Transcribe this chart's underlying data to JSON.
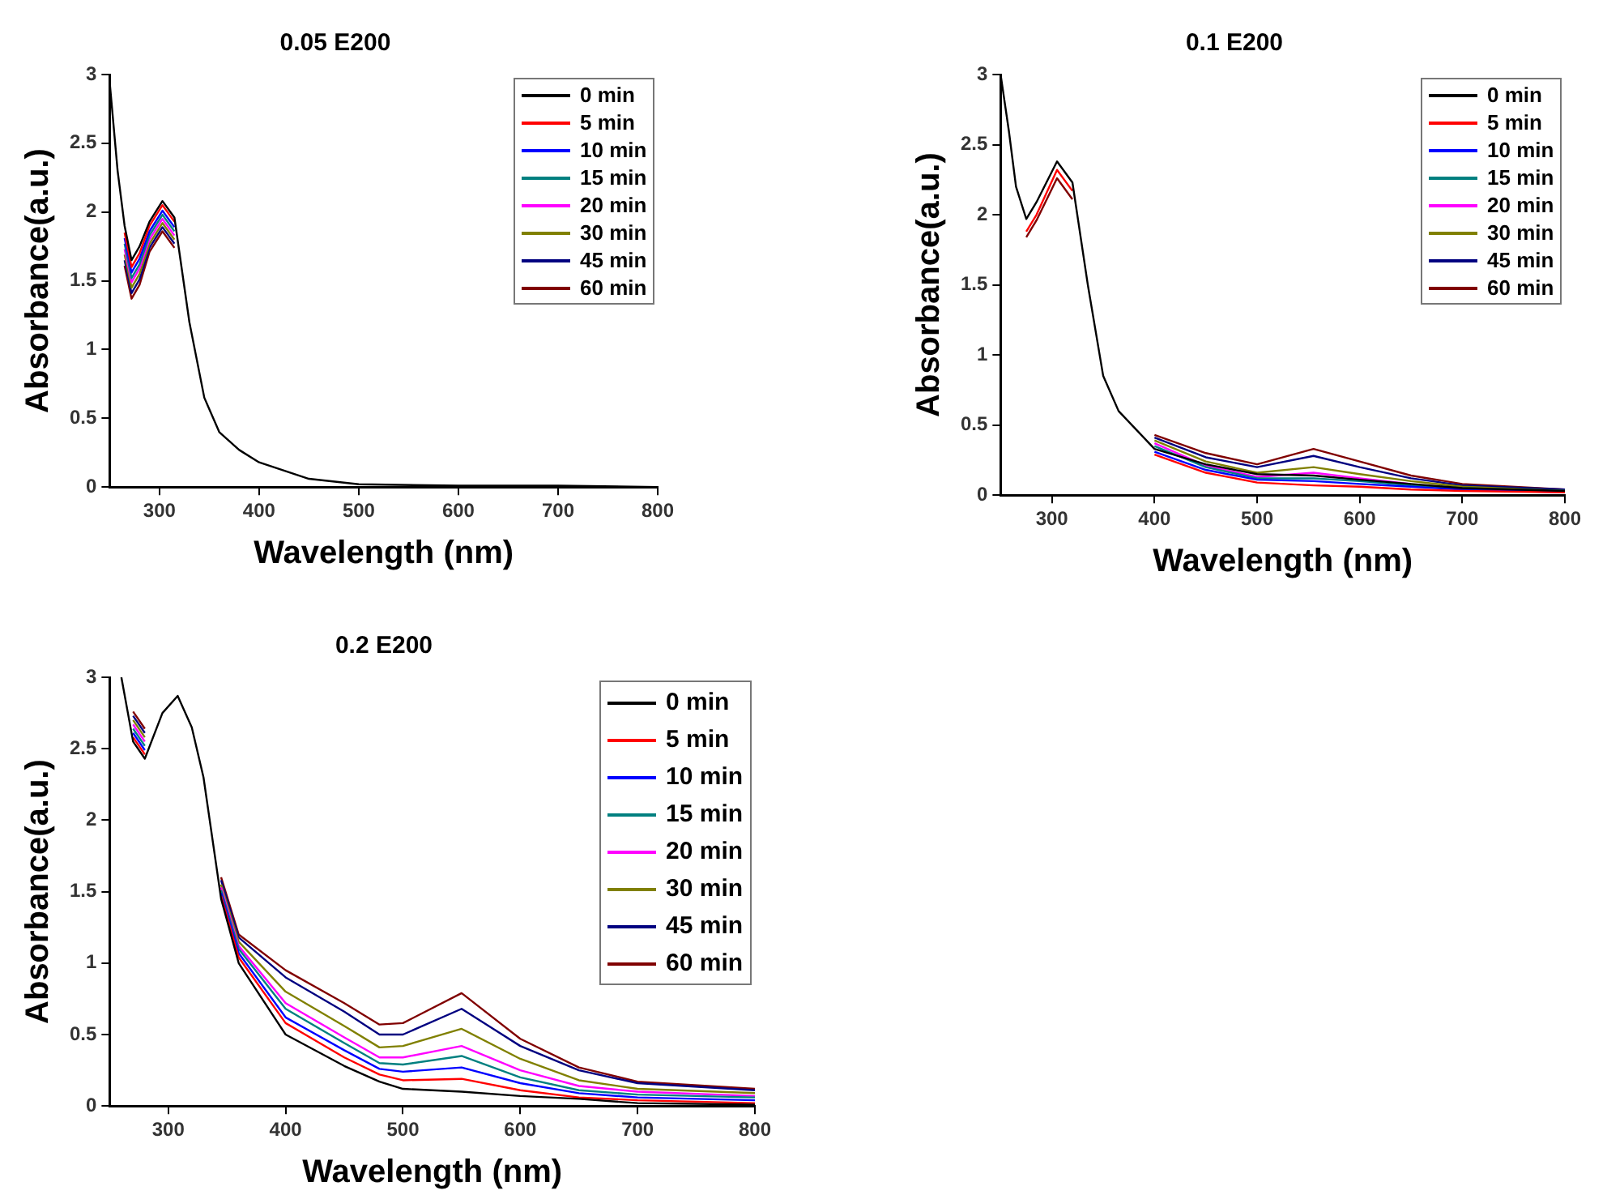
{
  "chart_data": [
    {
      "type": "line",
      "title": "0.05 E200",
      "xlabel": "Wavelength (nm)",
      "ylabel": "Absorbance(a.u.)",
      "xlim": [
        250,
        800
      ],
      "xticks": [
        300,
        400,
        500,
        600,
        700,
        800
      ],
      "ylim": [
        0,
        3
      ],
      "yticks": [
        0.0,
        0.5,
        1.0,
        1.5,
        2.0,
        2.5,
        3.0
      ],
      "grid": false,
      "legend": "top right",
      "marker": "none",
      "line_style": "solid",
      "x": [
        250,
        258,
        265,
        272,
        280,
        290,
        303,
        315,
        330,
        345,
        360,
        380,
        400,
        450,
        500,
        600,
        700,
        800
      ],
      "series": [
        {
          "name": "0 min",
          "color": "#000000",
          "values": [
            2.95,
            2.3,
            1.9,
            1.65,
            1.75,
            1.93,
            2.08,
            1.96,
            1.2,
            0.65,
            0.4,
            0.27,
            0.18,
            0.06,
            0.02,
            0.01,
            0.01,
            0
          ]
        },
        {
          "name": "5 min",
          "color": "#ff0000",
          "values": [
            null,
            null,
            1.85,
            1.6,
            1.7,
            1.9,
            2.05,
            1.93,
            null,
            null,
            null,
            null,
            null,
            null,
            null,
            null,
            null,
            null
          ]
        },
        {
          "name": "10 min",
          "color": "#0000ff",
          "values": [
            null,
            null,
            1.81,
            1.56,
            1.66,
            1.86,
            2.01,
            1.89,
            null,
            null,
            null,
            null,
            null,
            null,
            null,
            null,
            null,
            null
          ]
        },
        {
          "name": "15 min",
          "color": "#008080",
          "values": [
            null,
            null,
            1.77,
            1.52,
            1.62,
            1.83,
            1.98,
            1.86,
            null,
            null,
            null,
            null,
            null,
            null,
            null,
            null,
            null,
            null
          ]
        },
        {
          "name": "20 min",
          "color": "#ff00ff",
          "values": [
            null,
            null,
            1.73,
            1.49,
            1.59,
            1.8,
            1.95,
            1.83,
            null,
            null,
            null,
            null,
            null,
            null,
            null,
            null,
            null,
            null
          ]
        },
        {
          "name": "30 min",
          "color": "#808000",
          "values": [
            null,
            null,
            1.69,
            1.45,
            1.55,
            1.77,
            1.92,
            1.8,
            null,
            null,
            null,
            null,
            null,
            null,
            null,
            null,
            null,
            null
          ]
        },
        {
          "name": "45 min",
          "color": "#000080",
          "values": [
            null,
            null,
            1.65,
            1.41,
            1.51,
            1.74,
            1.89,
            1.77,
            null,
            null,
            null,
            null,
            null,
            null,
            null,
            null,
            null,
            null
          ]
        },
        {
          "name": "60 min",
          "color": "#800000",
          "values": [
            null,
            null,
            1.61,
            1.37,
            1.47,
            1.71,
            1.86,
            1.74,
            null,
            null,
            null,
            null,
            null,
            null,
            null,
            null,
            null,
            null
          ]
        }
      ]
    },
    {
      "type": "line",
      "title": "0.1 E200",
      "xlabel": "Wavelength (nm)",
      "ylabel": "Absorbance(a.u.)",
      "xlim": [
        250,
        800
      ],
      "xticks": [
        300,
        400,
        500,
        600,
        700,
        800
      ],
      "ylim": [
        0,
        3
      ],
      "yticks": [
        0.0,
        0.5,
        1.0,
        1.5,
        2.0,
        2.5,
        3.0
      ],
      "grid": false,
      "legend": "top right",
      "marker": "none",
      "line_style": "solid",
      "x": [
        250,
        258,
        265,
        275,
        285,
        305,
        320,
        335,
        350,
        365,
        400,
        450,
        500,
        555,
        600,
        650,
        700,
        800
      ],
      "series": [
        {
          "name": "0 min",
          "color": "#000000",
          "values": [
            3.0,
            2.6,
            2.2,
            1.97,
            2.09,
            2.38,
            2.23,
            1.5,
            0.85,
            0.6,
            0.33,
            0.22,
            0.15,
            0.14,
            0.11,
            0.08,
            0.05,
            0.03
          ]
        },
        {
          "name": "5 min",
          "color": "#ff0000",
          "values": [
            null,
            null,
            null,
            1.88,
            2.0,
            2.32,
            2.17,
            null,
            null,
            null,
            0.29,
            0.16,
            0.09,
            0.07,
            0.06,
            0.04,
            0.03,
            0.02
          ]
        },
        {
          "name": "10 min",
          "color": "#0000ff",
          "values": [
            null,
            null,
            null,
            null,
            null,
            null,
            null,
            null,
            null,
            null,
            0.31,
            0.18,
            0.11,
            0.1,
            0.08,
            0.06,
            0.04,
            0.02
          ]
        },
        {
          "name": "15 min",
          "color": "#008080",
          "values": [
            null,
            null,
            null,
            null,
            null,
            null,
            null,
            null,
            null,
            null,
            0.35,
            0.2,
            0.12,
            0.12,
            0.1,
            0.07,
            0.05,
            0.03
          ]
        },
        {
          "name": "20 min",
          "color": "#ff00ff",
          "values": [
            null,
            null,
            null,
            null,
            null,
            null,
            null,
            null,
            null,
            null,
            0.37,
            0.21,
            0.13,
            0.16,
            0.12,
            0.08,
            null,
            null
          ]
        },
        {
          "name": "30 min",
          "color": "#808000",
          "values": [
            null,
            null,
            null,
            null,
            null,
            null,
            null,
            null,
            null,
            null,
            0.39,
            0.24,
            0.16,
            0.2,
            0.15,
            0.1,
            0.06,
            0.03
          ]
        },
        {
          "name": "45 min",
          "color": "#000080",
          "values": [
            null,
            null,
            null,
            null,
            null,
            null,
            null,
            null,
            null,
            null,
            0.41,
            0.27,
            0.2,
            0.28,
            0.2,
            0.12,
            0.07,
            0.04
          ]
        },
        {
          "name": "60 min",
          "color": "#800000",
          "values": [
            null,
            null,
            null,
            1.84,
            1.96,
            2.26,
            2.11,
            null,
            null,
            null,
            0.43,
            0.3,
            0.22,
            0.33,
            0.24,
            0.14,
            0.08,
            0.04
          ]
        }
      ]
    },
    {
      "type": "line",
      "title": "0.2 E200",
      "xlabel": "Wavelength (nm)",
      "ylabel": "Absorbance(a.u.)",
      "xlim": [
        250,
        800
      ],
      "xticks": [
        300,
        400,
        500,
        600,
        700,
        800
      ],
      "ylim": [
        0,
        3
      ],
      "yticks": [
        0.0,
        0.5,
        1.0,
        1.5,
        2.0,
        2.5,
        3.0
      ],
      "grid": false,
      "legend": "top right",
      "marker": "none",
      "line_style": "solid",
      "x": [
        260,
        270,
        280,
        295,
        308,
        320,
        330,
        345,
        360,
        400,
        450,
        480,
        500,
        550,
        600,
        650,
        700,
        800
      ],
      "series": [
        {
          "name": "0 min",
          "color": "#000000",
          "values": [
            3.0,
            2.55,
            2.43,
            2.75,
            2.87,
            2.65,
            2.3,
            1.45,
            1.0,
            0.5,
            0.28,
            0.17,
            0.12,
            0.1,
            0.07,
            0.05,
            0.02,
            0.01
          ]
        },
        {
          "name": "5 min",
          "color": "#ff0000",
          "values": [
            null,
            2.58,
            2.46,
            null,
            null,
            null,
            null,
            1.47,
            1.04,
            0.58,
            0.34,
            0.22,
            0.18,
            0.19,
            0.11,
            0.06,
            0.04,
            0.02
          ]
        },
        {
          "name": "10 min",
          "color": "#0000ff",
          "values": [
            null,
            2.61,
            2.49,
            null,
            null,
            null,
            null,
            1.49,
            1.07,
            0.62,
            0.39,
            0.26,
            0.24,
            0.27,
            0.16,
            0.09,
            0.06,
            0.04
          ]
        },
        {
          "name": "15 min",
          "color": "#008080",
          "values": [
            null,
            2.64,
            2.52,
            null,
            null,
            null,
            null,
            1.51,
            1.1,
            0.68,
            0.44,
            0.3,
            0.29,
            0.35,
            0.2,
            0.11,
            0.08,
            0.06
          ]
        },
        {
          "name": "20 min",
          "color": "#ff00ff",
          "values": [
            null,
            2.67,
            2.55,
            null,
            null,
            null,
            null,
            1.53,
            1.12,
            0.72,
            0.48,
            0.34,
            0.34,
            0.42,
            0.25,
            0.14,
            0.1,
            0.07
          ]
        },
        {
          "name": "30 min",
          "color": "#808000",
          "values": [
            null,
            2.7,
            2.58,
            null,
            null,
            null,
            null,
            1.55,
            1.15,
            0.8,
            0.56,
            0.41,
            0.42,
            0.54,
            0.33,
            0.18,
            0.12,
            0.09
          ]
        },
        {
          "name": "45 min",
          "color": "#000080",
          "values": [
            null,
            2.73,
            2.61,
            null,
            null,
            null,
            null,
            1.58,
            1.18,
            0.9,
            0.66,
            0.5,
            0.5,
            0.68,
            0.42,
            0.25,
            0.16,
            0.11
          ]
        },
        {
          "name": "60 min",
          "color": "#800000",
          "values": [
            null,
            2.76,
            2.64,
            null,
            null,
            null,
            null,
            1.6,
            1.2,
            0.95,
            0.72,
            0.57,
            0.58,
            0.79,
            0.47,
            0.27,
            0.17,
            0.12
          ]
        }
      ]
    }
  ]
}
